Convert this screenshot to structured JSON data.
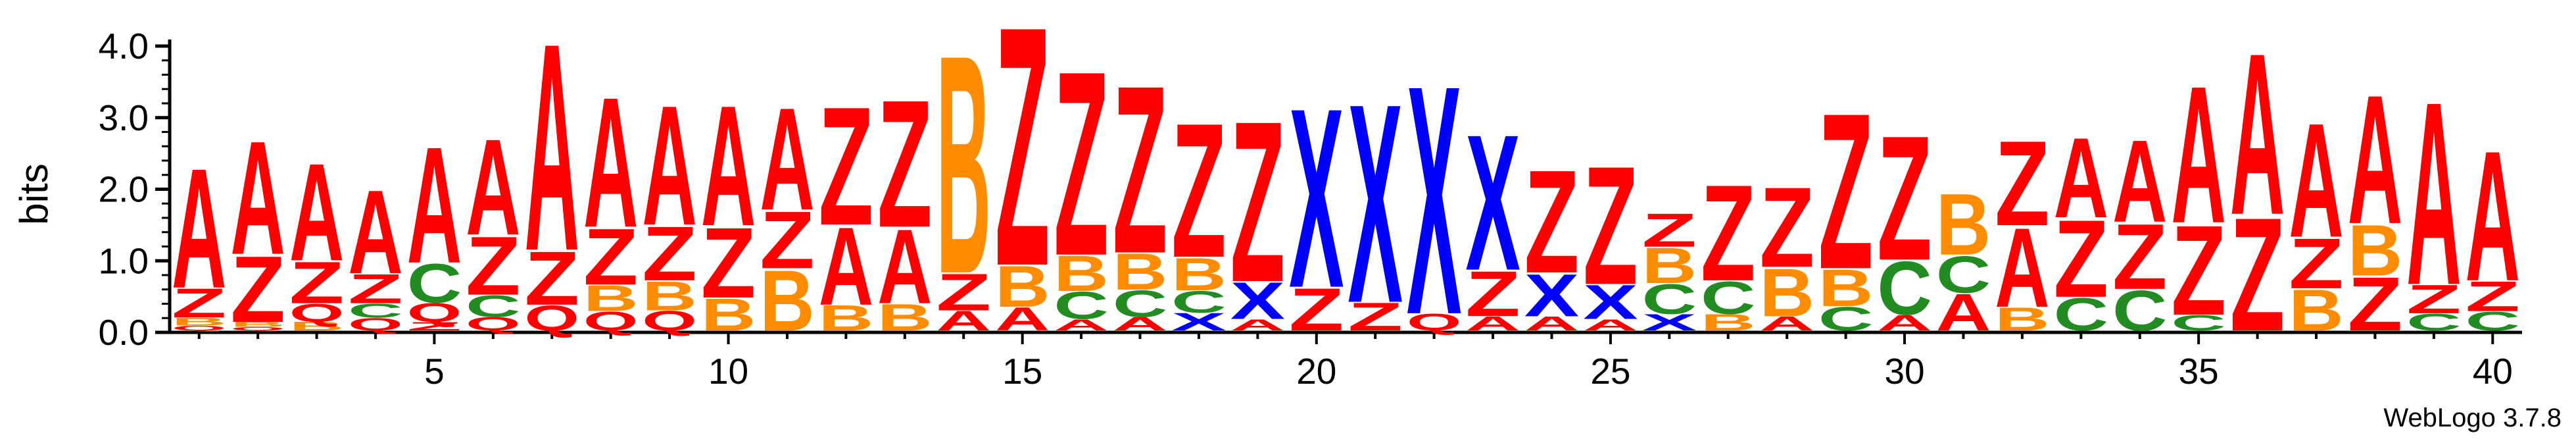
{
  "chart_data": {
    "type": "sequence-logo",
    "ylabel": "bits",
    "ylim": [
      0,
      4.0
    ],
    "yticks": [
      "0.0",
      "1.0",
      "2.0",
      "3.0",
      "4.0"
    ],
    "xticks": [
      "5",
      "10",
      "15",
      "20",
      "25",
      "30",
      "35",
      "40"
    ],
    "positions": 40,
    "colors": {
      "A": "#ff0000",
      "Z": "#ff0000",
      "Q": "#ff0000",
      "B": "#ff8c00",
      "C": "#228b22",
      "X": "#0000ff"
    },
    "columns": [
      [
        {
          "l": "Q",
          "h": 0.07
        },
        {
          "l": "B",
          "h": 0.11
        },
        {
          "l": "Z",
          "h": 0.42
        },
        {
          "l": "A",
          "h": 1.72
        }
      ],
      [
        {
          "l": "Q",
          "h": 0.05
        },
        {
          "l": "B",
          "h": 0.07
        },
        {
          "l": "Z",
          "h": 0.95
        },
        {
          "l": "A",
          "h": 1.63
        }
      ],
      [
        {
          "l": "B",
          "h": 0.12
        },
        {
          "l": "Q",
          "h": 0.26
        },
        {
          "l": "Z",
          "h": 0.6
        },
        {
          "l": "A",
          "h": 1.4
        }
      ],
      [
        {
          "l": "Q",
          "h": 0.18
        },
        {
          "l": "C",
          "h": 0.2
        },
        {
          "l": "Z",
          "h": 0.42
        },
        {
          "l": "A",
          "h": 1.2
        }
      ],
      [
        {
          "l": "Z",
          "h": 0.12
        },
        {
          "l": "Q",
          "h": 0.27
        },
        {
          "l": "C",
          "h": 0.56
        },
        {
          "l": "A",
          "h": 1.67
        }
      ],
      [
        {
          "l": "Q",
          "h": 0.19
        },
        {
          "l": "C",
          "h": 0.31
        },
        {
          "l": "Z",
          "h": 0.84
        },
        {
          "l": "A",
          "h": 1.38
        }
      ],
      [
        {
          "l": "Q",
          "h": 0.36
        },
        {
          "l": "Z",
          "h": 0.77
        },
        {
          "l": "A",
          "h": 2.98
        }
      ],
      [
        {
          "l": "Q",
          "h": 0.27
        },
        {
          "l": "B",
          "h": 0.37
        },
        {
          "l": "Z",
          "h": 0.81
        },
        {
          "l": "A",
          "h": 1.87
        }
      ],
      [
        {
          "l": "Q",
          "h": 0.28
        },
        {
          "l": "B",
          "h": 0.42
        },
        {
          "l": "Z",
          "h": 0.78
        },
        {
          "l": "A",
          "h": 1.72
        }
      ],
      [
        {
          "l": "B",
          "h": 0.46
        },
        {
          "l": "Z",
          "h": 1.01
        },
        {
          "l": "A",
          "h": 1.73
        }
      ],
      [
        {
          "l": "B",
          "h": 0.87
        },
        {
          "l": "Z",
          "h": 0.82
        },
        {
          "l": "A",
          "h": 1.47
        }
      ],
      [
        {
          "l": "B",
          "h": 0.36
        },
        {
          "l": "A",
          "h": 1.12
        },
        {
          "l": "Z",
          "h": 1.7
        }
      ],
      [
        {
          "l": "B",
          "h": 0.38
        },
        {
          "l": "A",
          "h": 1.07
        },
        {
          "l": "Z",
          "h": 1.83
        }
      ],
      [
        {
          "l": "A",
          "h": 0.28
        },
        {
          "l": "Z",
          "h": 0.53
        },
        {
          "l": "B",
          "h": 3.14
        }
      ],
      [
        {
          "l": "A",
          "h": 0.33
        },
        {
          "l": "B",
          "h": 0.59
        },
        {
          "l": "Z",
          "h": 3.44
        }
      ],
      [
        {
          "l": "A",
          "h": 0.16
        },
        {
          "l": "C",
          "h": 0.39
        },
        {
          "l": "B",
          "h": 0.51
        },
        {
          "l": "Z",
          "h": 2.65
        }
      ],
      [
        {
          "l": "A",
          "h": 0.19
        },
        {
          "l": "C",
          "h": 0.38
        },
        {
          "l": "B",
          "h": 0.52
        },
        {
          "l": "Z",
          "h": 2.41
        }
      ],
      [
        {
          "l": "X",
          "h": 0.25
        },
        {
          "l": "C",
          "h": 0.31
        },
        {
          "l": "B",
          "h": 0.47
        },
        {
          "l": "Z",
          "h": 1.93
        }
      ],
      [
        {
          "l": "A",
          "h": 0.16
        },
        {
          "l": "X",
          "h": 0.53
        },
        {
          "l": "Z",
          "h": 2.31
        }
      ],
      [
        {
          "l": "Z",
          "h": 0.61
        },
        {
          "l": "X",
          "h": 2.58
        }
      ],
      [
        {
          "l": "Z",
          "h": 0.4
        },
        {
          "l": "X",
          "h": 2.86
        }
      ],
      [
        {
          "l": "Q",
          "h": 0.24
        },
        {
          "l": "X",
          "h": 3.29
        }
      ],
      [
        {
          "l": "A",
          "h": 0.2
        },
        {
          "l": "Z",
          "h": 0.65
        },
        {
          "l": "X",
          "h": 1.95
        }
      ],
      [
        {
          "l": "A",
          "h": 0.2
        },
        {
          "l": "X",
          "h": 0.61
        },
        {
          "l": "Z",
          "h": 1.48
        }
      ],
      [
        {
          "l": "A",
          "h": 0.16
        },
        {
          "l": "X",
          "h": 0.49
        },
        {
          "l": "Z",
          "h": 1.7
        }
      ],
      [
        {
          "l": "X",
          "h": 0.23
        },
        {
          "l": "C",
          "h": 0.43
        },
        {
          "l": "B",
          "h": 0.51
        },
        {
          "l": "Z",
          "h": 0.48
        }
      ],
      [
        {
          "l": "B",
          "h": 0.23
        },
        {
          "l": "C",
          "h": 0.47
        },
        {
          "l": "Z",
          "h": 1.38
        }
      ],
      [
        {
          "l": "A",
          "h": 0.2
        },
        {
          "l": "B",
          "h": 0.69
        },
        {
          "l": "Z",
          "h": 1.15
        }
      ],
      [
        {
          "l": "C",
          "h": 0.34
        },
        {
          "l": "B",
          "h": 0.53
        },
        {
          "l": "Z",
          "h": 2.24
        }
      ],
      [
        {
          "l": "A",
          "h": 0.22
        },
        {
          "l": "C",
          "h": 0.77
        },
        {
          "l": "Z",
          "h": 1.79
        }
      ],
      [
        {
          "l": "A",
          "h": 0.53
        },
        {
          "l": "C",
          "h": 0.53
        },
        {
          "l": "B",
          "h": 0.88
        }
      ],
      [
        {
          "l": "B",
          "h": 0.33
        },
        {
          "l": "A",
          "h": 1.14
        },
        {
          "l": "Z",
          "h": 1.22
        }
      ],
      [
        {
          "l": "C",
          "h": 0.47
        },
        {
          "l": "Z",
          "h": 1.11
        },
        {
          "l": "A",
          "h": 1.15
        }
      ],
      [
        {
          "l": "C",
          "h": 0.58
        },
        {
          "l": "Z",
          "h": 0.94
        },
        {
          "l": "A",
          "h": 1.18
        }
      ],
      [
        {
          "l": "C",
          "h": 0.22
        },
        {
          "l": "Z",
          "h": 1.29
        },
        {
          "l": "A",
          "h": 1.97
        }
      ],
      [
        {
          "l": "Z",
          "h": 1.63
        },
        {
          "l": "A",
          "h": 2.32
        }
      ],
      [
        {
          "l": "B",
          "h": 0.59
        },
        {
          "l": "Z",
          "h": 0.72
        },
        {
          "l": "A",
          "h": 1.64
        }
      ],
      [
        {
          "l": "Z",
          "h": 0.77
        },
        {
          "l": "B",
          "h": 0.73
        },
        {
          "l": "A",
          "h": 1.85
        }
      ],
      [
        {
          "l": "C",
          "h": 0.24
        },
        {
          "l": "Z",
          "h": 0.41
        },
        {
          "l": "A",
          "h": 2.63
        }
      ],
      [
        {
          "l": "C",
          "h": 0.27
        },
        {
          "l": "Z",
          "h": 0.43
        },
        {
          "l": "A",
          "h": 1.87
        }
      ]
    ]
  },
  "footer": {
    "version": "WebLogo 3.7.8"
  }
}
